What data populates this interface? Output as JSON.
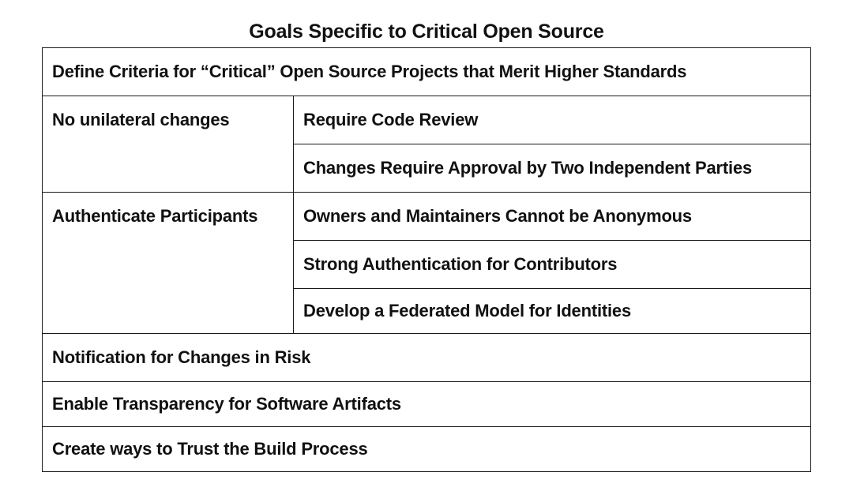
{
  "title": "Goals Specific to Critical Open Source",
  "rows": {
    "define_criteria": "Define Criteria for “Critical” Open Source Projects that Merit Higher Standards",
    "no_unilateral": {
      "label": "No unilateral changes",
      "items": [
        "Require Code Review",
        "Changes Require Approval by Two Independent Parties"
      ]
    },
    "authenticate": {
      "label": "Authenticate Participants",
      "items": [
        "Owners and Maintainers Cannot be Anonymous",
        "Strong Authentication for Contributors",
        "Develop a Federated Model for Identities"
      ]
    },
    "notification": "Notification for Changes in Risk",
    "transparency": "Enable Transparency for Software Artifacts",
    "trust_build": "Create ways to Trust the Build Process"
  }
}
